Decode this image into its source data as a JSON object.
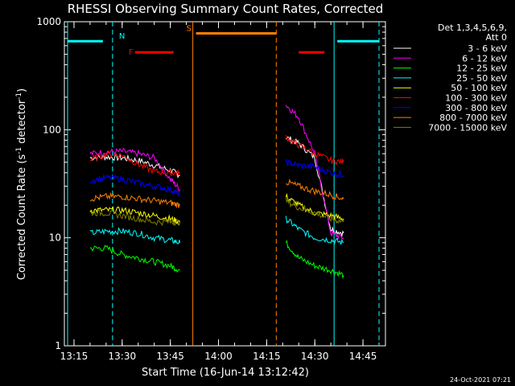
{
  "chart_data": {
    "type": "line",
    "title": "RHESSI Observing Summary Count Rates, Corrected",
    "xlabel": "Start Time (16-Jun-14 13:12:42)",
    "ylabel_main": "Corrected Count Rate (s",
    "ylabel_sup1": "-1",
    "ylabel_mid": " detector",
    "ylabel_sup2": "-1",
    "ylabel_end": ")",
    "yscale": "log",
    "ylim": [
      1,
      1000
    ],
    "xlim": [
      "13:12",
      "14:52"
    ],
    "x_ticks": [
      "13:15",
      "13:30",
      "13:45",
      "14:00",
      "14:15",
      "14:30",
      "14:45"
    ],
    "y_ticks": [
      "1",
      "10",
      "100",
      "1000"
    ],
    "legend_position": "top-right",
    "legend_header": [
      "Det 1,3,4,5,6,9,",
      "Att 0"
    ],
    "series": [
      {
        "name": "3 - 6 keV",
        "color": "#ffffff"
      },
      {
        "name": "6 - 12 keV",
        "color": "#ff00ff"
      },
      {
        "name": "12 - 25 keV",
        "color": "#00ff00"
      },
      {
        "name": "25 - 50 keV",
        "color": "#00ffff"
      },
      {
        "name": "50 - 100 keV",
        "color": "#ffff00"
      },
      {
        "name": "100 - 300 keV",
        "color": "#ff0000"
      },
      {
        "name": "300 - 800 keV",
        "color": "#0000ff"
      },
      {
        "name": "800 - 7000 keV",
        "color": "#ff8000"
      },
      {
        "name": "7000 - 15000 keV",
        "color": "#808000"
      }
    ],
    "series_values": {
      "segment1_x": [
        "13:20",
        "13:25",
        "13:30",
        "13:35",
        "13:40",
        "13:45",
        "13:48"
      ],
      "segment2_x": [
        "14:21",
        "14:25",
        "14:30",
        "14:35",
        "14:39"
      ],
      "3 - 6 keV": {
        "seg1": [
          55,
          56,
          55,
          52,
          47,
          42,
          38
        ],
        "seg2": [
          85,
          75,
          55,
          12,
          11
        ]
      },
      "6 - 12 keV": {
        "seg1": [
          60,
          62,
          63,
          60,
          55,
          35,
          28
        ],
        "seg2": [
          170,
          130,
          60,
          11,
          10
        ]
      },
      "12 - 25 keV": {
        "seg1": [
          8,
          8,
          7,
          6.5,
          6,
          5.5,
          5
        ],
        "seg2": [
          9,
          6.5,
          5.5,
          5,
          4.5
        ]
      },
      "25 - 50 keV": {
        "seg1": [
          11,
          11.5,
          11.5,
          11,
          10,
          9.5,
          9
        ],
        "seg2": [
          15,
          12,
          10,
          9.5,
          9
        ]
      },
      "50 - 100 keV": {
        "seg1": [
          18,
          18,
          18,
          17,
          16,
          15,
          14
        ],
        "seg2": [
          24,
          20,
          17,
          16,
          15
        ]
      },
      "100 - 300 keV": {
        "seg1": [
          52,
          60,
          58,
          48,
          41,
          40,
          40
        ],
        "seg2": [
          85,
          72,
          60,
          52,
          50
        ]
      },
      "300 - 800 keV": {
        "seg1": [
          34,
          36,
          35,
          32,
          30,
          28,
          25
        ],
        "seg2": [
          50,
          47,
          45,
          40,
          38
        ]
      },
      "800 - 7000 keV": {
        "seg1": [
          23,
          24,
          24,
          23,
          22,
          21,
          20
        ],
        "seg2": [
          33,
          30,
          27,
          25,
          23
        ]
      },
      "7000 - 15000 keV": {
        "seg1": [
          17,
          17,
          16,
          15,
          14,
          14,
          14
        ],
        "seg2": [
          22,
          19,
          17,
          15,
          14
        ]
      }
    },
    "flags": [
      {
        "label": "N",
        "color": "#00ffff",
        "bars": [
          [
            "13:13",
            "13:24"
          ],
          [
            "14:37",
            "14:50"
          ]
        ],
        "level": 660
      },
      {
        "label": "S",
        "color": "#ff8000",
        "bars": [
          [
            "13:53",
            "14:18"
          ]
        ],
        "level": 780
      },
      {
        "label": "F",
        "color": "#ff0000",
        "bars": [
          [
            "13:34",
            "13:46"
          ],
          [
            "14:25",
            "14:33"
          ]
        ],
        "level": 520
      }
    ],
    "vertical_lines": [
      {
        "x": "13:13",
        "color": "#00ffff",
        "style": "solid"
      },
      {
        "x": "13:27",
        "color": "#00ffff",
        "style": "dashed"
      },
      {
        "x": "13:52",
        "color": "#ff8000",
        "style": "solid"
      },
      {
        "x": "14:18",
        "color": "#ff8000",
        "style": "dashed"
      },
      {
        "x": "14:36",
        "color": "#00ffff",
        "style": "solid"
      },
      {
        "x": "14:50",
        "color": "#00ffff",
        "style": "dashed"
      }
    ]
  },
  "footer_timestamp": "24-Oct-2021 07:21"
}
